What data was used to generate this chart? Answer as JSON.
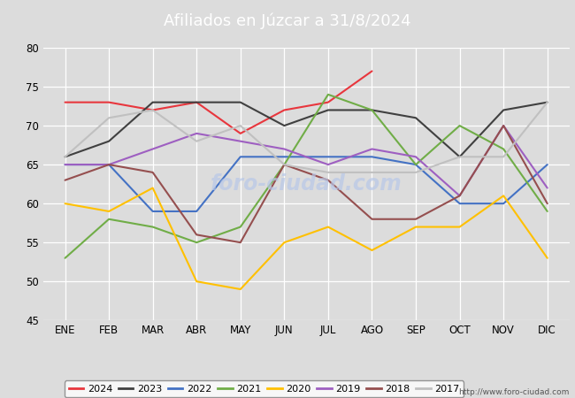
{
  "title": "Afiliados en Júzcar a 31/8/2024",
  "title_color": "#ffffff",
  "title_bg_color": "#4472c4",
  "ylim": [
    45,
    80
  ],
  "yticks": [
    45,
    50,
    55,
    60,
    65,
    70,
    75,
    80
  ],
  "months": [
    "ENE",
    "FEB",
    "MAR",
    "ABR",
    "MAY",
    "JUN",
    "JUL",
    "AGO",
    "SEP",
    "OCT",
    "NOV",
    "DIC"
  ],
  "url": "http://www.foro-ciudad.com",
  "series": {
    "2024": {
      "color": "#e8363d",
      "data": [
        73,
        73,
        72,
        73,
        69,
        72,
        73,
        77,
        null,
        null,
        null,
        null
      ]
    },
    "2023": {
      "color": "#404040",
      "data": [
        66,
        68,
        73,
        73,
        73,
        70,
        72,
        72,
        71,
        66,
        72,
        73
      ]
    },
    "2022": {
      "color": "#4472c4",
      "data": [
        65,
        65,
        59,
        59,
        66,
        66,
        66,
        66,
        65,
        60,
        60,
        65
      ]
    },
    "2021": {
      "color": "#70ad47",
      "data": [
        53,
        58,
        57,
        55,
        57,
        65,
        74,
        72,
        65,
        70,
        67,
        59
      ]
    },
    "2020": {
      "color": "#ffc000",
      "data": [
        60,
        59,
        62,
        50,
        49,
        55,
        57,
        54,
        57,
        57,
        61,
        53
      ]
    },
    "2019": {
      "color": "#9e5fc1",
      "data": [
        65,
        65,
        67,
        69,
        68,
        67,
        65,
        67,
        66,
        61,
        70,
        62
      ]
    },
    "2018": {
      "color": "#954f4f",
      "data": [
        63,
        65,
        64,
        56,
        55,
        65,
        63,
        58,
        58,
        61,
        70,
        60
      ]
    },
    "2017": {
      "color": "#c0c0c0",
      "data": [
        66,
        71,
        72,
        68,
        70,
        65,
        64,
        64,
        64,
        66,
        66,
        73
      ]
    }
  },
  "legend_order": [
    "2024",
    "2023",
    "2022",
    "2021",
    "2020",
    "2019",
    "2018",
    "2017"
  ],
  "background_color": "#dcdcdc",
  "plot_bg_color": "#dcdcdc",
  "grid_color": "#ffffff",
  "watermark_color": "#b8c8e8",
  "watermark_text": "foro-ciudad.com"
}
